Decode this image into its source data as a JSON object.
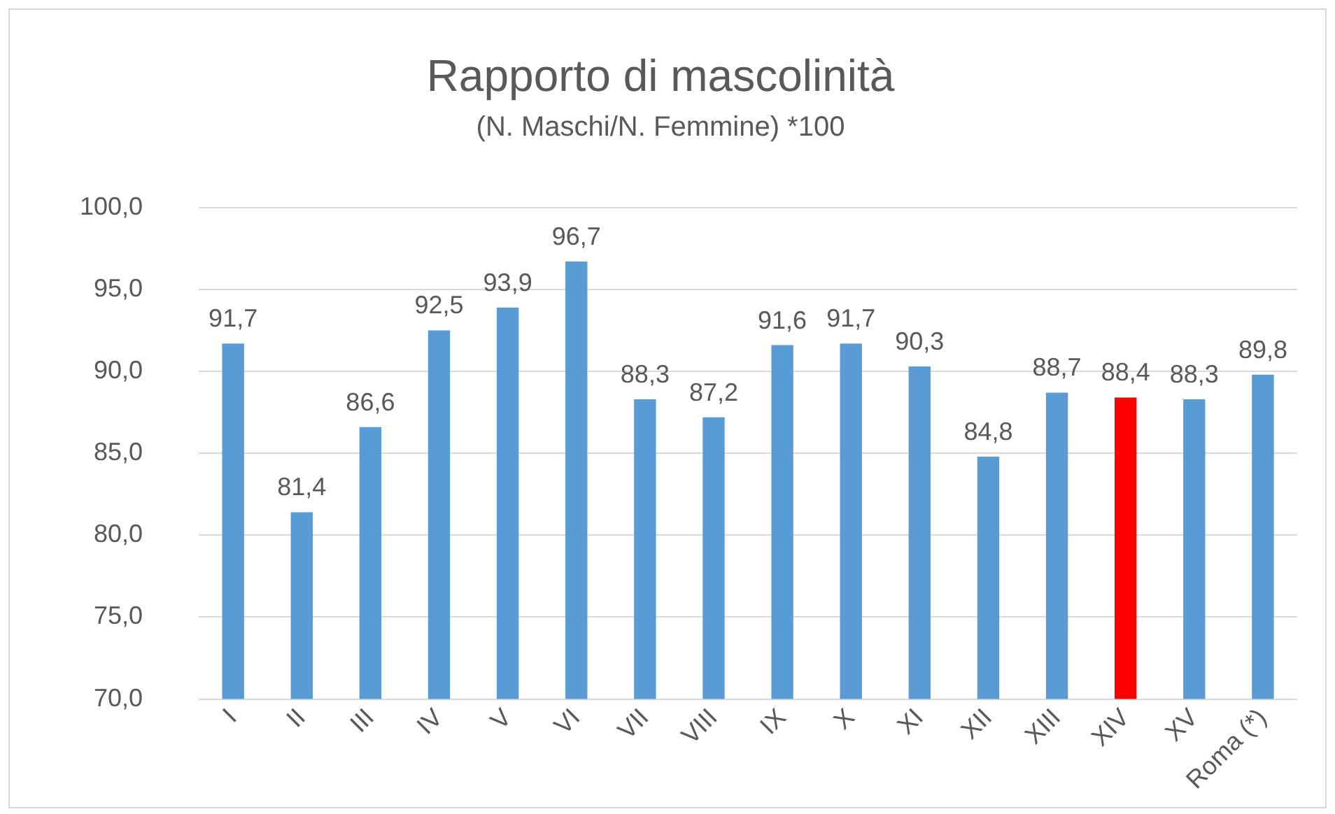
{
  "chart_data": {
    "type": "bar",
    "title": "Rapporto di mascolinità",
    "subtitle": "(N. Maschi/N. Femmine) *100",
    "categories": [
      "I",
      "II",
      "III",
      "IV",
      "V",
      "VI",
      "VII",
      "VIII",
      "IX",
      "X",
      "XI",
      "XII",
      "XIII",
      "XIV",
      "XV",
      "Roma (*)"
    ],
    "values": [
      91.7,
      81.4,
      86.6,
      92.5,
      93.9,
      96.7,
      88.3,
      87.2,
      91.6,
      91.7,
      90.3,
      84.8,
      88.7,
      88.4,
      88.3,
      89.8
    ],
    "value_labels": [
      "91,7",
      "81,4",
      "86,6",
      "92,5",
      "93,9",
      "96,7",
      "88,3",
      "87,2",
      "91,6",
      "91,7",
      "90,3",
      "84,8",
      "88,7",
      "88,4",
      "88,3",
      "89,8"
    ],
    "colors": [
      "#5b9bd5",
      "#5b9bd5",
      "#5b9bd5",
      "#5b9bd5",
      "#5b9bd5",
      "#5b9bd5",
      "#5b9bd5",
      "#5b9bd5",
      "#5b9bd5",
      "#5b9bd5",
      "#5b9bd5",
      "#5b9bd5",
      "#5b9bd5",
      "#ff0000",
      "#5b9bd5",
      "#5b9bd5"
    ],
    "ylim": [
      70,
      100
    ],
    "yticks": [
      {
        "value": 70,
        "label": "70,0"
      },
      {
        "value": 75,
        "label": "75,0"
      },
      {
        "value": 80,
        "label": "80,0"
      },
      {
        "value": 85,
        "label": "85,0"
      },
      {
        "value": 90,
        "label": "90,0"
      },
      {
        "value": 95,
        "label": "95,0"
      },
      {
        "value": 100,
        "label": "100,0"
      }
    ],
    "grid": "y",
    "legend": false
  }
}
